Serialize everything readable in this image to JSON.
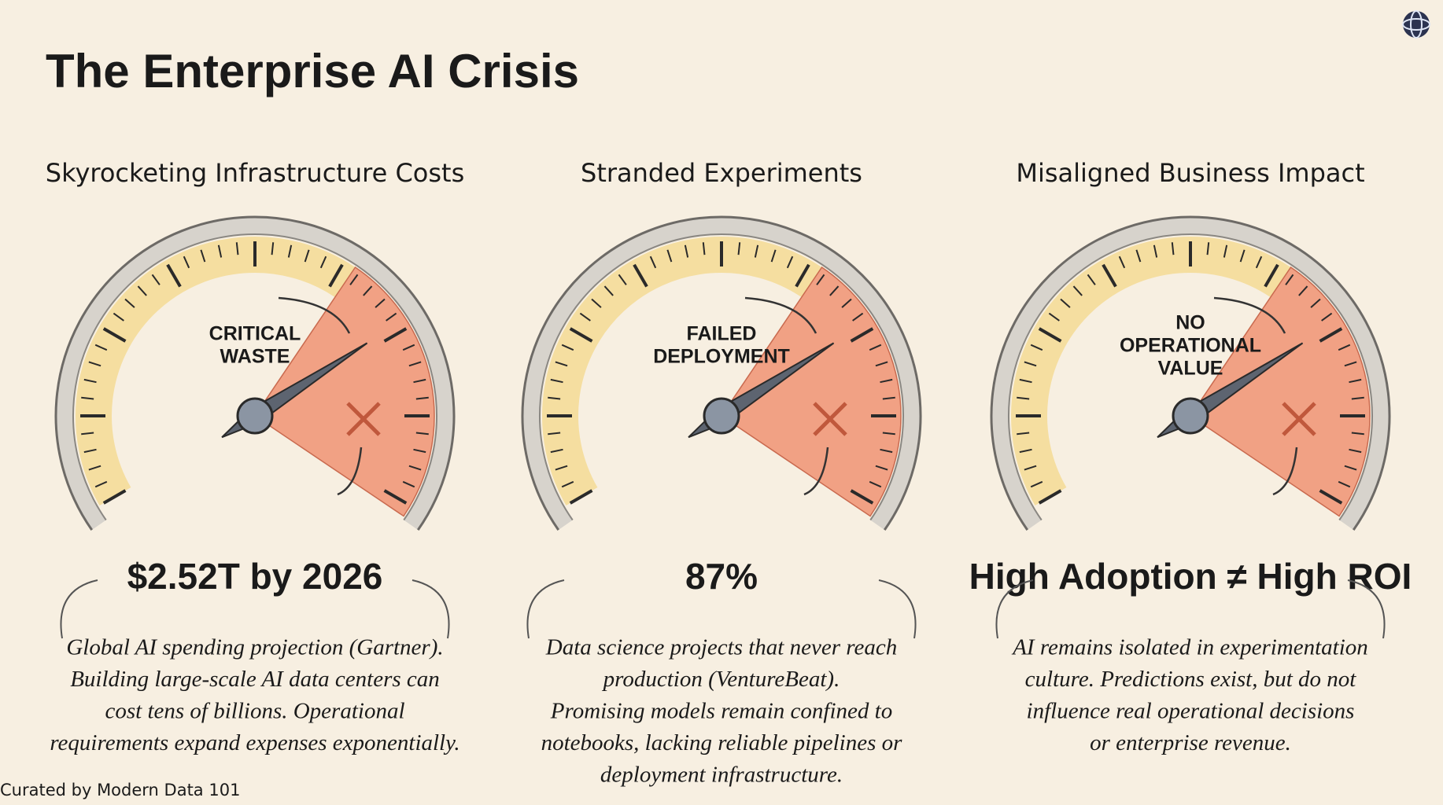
{
  "title": "The Enterprise AI Crisis",
  "panels": [
    {
      "heading": "Skyrocketing Infrastructure Costs",
      "gauge_label": [
        "CRITICAL",
        "WASTE"
      ],
      "stat": "$2.52T by 2026",
      "description": [
        "Global AI spending projection (Gartner).",
        "Building large-scale AI data centers can",
        "cost tens of billions. Operational",
        "requirements expand expenses exponentially."
      ]
    },
    {
      "heading": "Stranded Experiments",
      "gauge_label": [
        "FAILED",
        "DEPLOYMENT"
      ],
      "stat": "87%",
      "description": [
        "Data science projects that never reach",
        "production (VentureBeat).",
        "Promising models remain confined to",
        "notebooks, lacking reliable pipelines or",
        "deployment infrastructure."
      ]
    },
    {
      "heading": "Misaligned Business Impact",
      "gauge_label": [
        "NO",
        "OPERATIONAL",
        "VALUE"
      ],
      "stat": "High Adoption ≠ High ROI",
      "description": [
        "AI remains isolated in experimentation",
        "culture. Predictions exist, but do not",
        "influence real operational decisions",
        "or enterprise revenue."
      ]
    }
  ],
  "footer": "Curated by Modern Data 101"
}
